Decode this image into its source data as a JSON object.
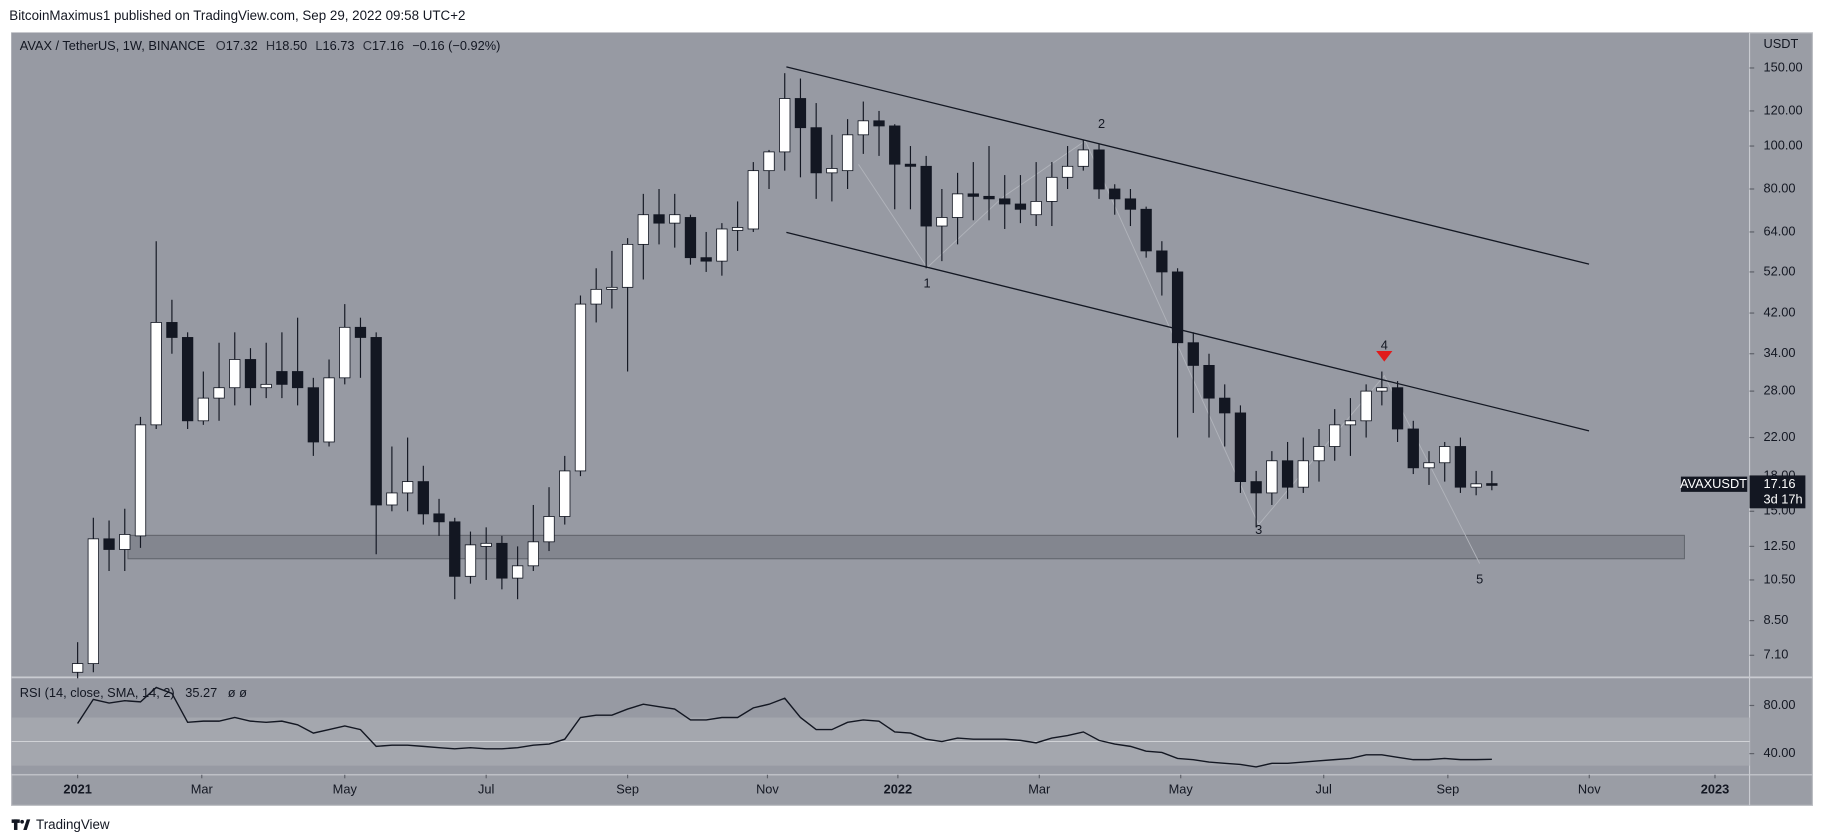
{
  "header": {
    "published": "BitcoinMaximus1 published on TradingView.com, Sep 29, 2022 09:58 UTC+2"
  },
  "footer": {
    "brand": "TradingView"
  },
  "annotations": {
    "waves": [
      "1",
      "2",
      "3",
      "4",
      "5"
    ]
  },
  "chart_data": [
    {
      "type": "candlestick",
      "title": "AVAX / TetherUS, 1W, BINANCE",
      "legend_keys": [
        "O",
        "H",
        "L",
        "C"
      ],
      "legend_labels": [
        "17.32",
        "18.50",
        "16.73",
        "17.16"
      ],
      "change": "−0.16 (−0.92%)",
      "symbol_tag": "AVAXUSDT",
      "countdown": "3d 17h",
      "y_axis_label": "USDT",
      "log_scale": true,
      "grid": false,
      "up_color": "#ffffff",
      "down_color": "#131722",
      "x": [
        0,
        1,
        2,
        3,
        4,
        5,
        6,
        7,
        8,
        9,
        10,
        11,
        12,
        13,
        14,
        15,
        16,
        17,
        18,
        19,
        20,
        21,
        22,
        23,
        24,
        25,
        26,
        27,
        28,
        29,
        30,
        31,
        32,
        33,
        34,
        35,
        36,
        37,
        38,
        39,
        40,
        41,
        42,
        43,
        44,
        45,
        46,
        47,
        48,
        49,
        50,
        51,
        52,
        53,
        54,
        55,
        56,
        57,
        58,
        59,
        60,
        61,
        62,
        63,
        64,
        65,
        66,
        67,
        68,
        69,
        70,
        71,
        72,
        73,
        74,
        75,
        76,
        77,
        78,
        79,
        80,
        81,
        82,
        83,
        84,
        85,
        86,
        87,
        88,
        89,
        90
      ],
      "open": [
        6.5,
        6.8,
        13.0,
        12.3,
        13.2,
        23.5,
        40,
        37,
        24,
        27,
        28.5,
        33,
        28.5,
        31,
        31,
        28.5,
        21.5,
        30,
        39,
        37,
        15.5,
        16.5,
        17.5,
        14.8,
        14.2,
        10.7,
        12.5,
        12.7,
        10.6,
        11.3,
        12.8,
        14.6,
        18.5,
        44,
        47.5,
        48,
        60,
        70,
        67,
        69,
        56,
        55,
        64.5,
        65,
        88,
        97,
        128,
        110,
        87,
        88,
        106,
        114,
        111,
        91,
        90,
        66,
        69,
        78,
        77,
        76,
        74,
        70,
        75,
        85,
        90,
        98,
        80,
        76,
        72,
        58,
        52,
        36,
        32,
        27,
        25,
        17.5,
        16.5,
        19.5,
        17,
        19.5,
        21,
        23.5,
        24,
        28,
        28.5,
        23,
        18.8,
        19.3,
        21,
        17,
        17.32
      ],
      "high": [
        7.6,
        14.5,
        14.3,
        15.2,
        24.5,
        61,
        45,
        38,
        31,
        36,
        38,
        35,
        36,
        38,
        41,
        30,
        33,
        44,
        41,
        38,
        21,
        22,
        19,
        16,
        14.5,
        13.5,
        13.8,
        13.2,
        12.5,
        15.5,
        17,
        20,
        46,
        53,
        58,
        62,
        78,
        80,
        78,
        70,
        64,
        67,
        75,
        92,
        98,
        146,
        142,
        125,
        106,
        115,
        126,
        120,
        112,
        100,
        95,
        80,
        87,
        92,
        100,
        86,
        86,
        92,
        92,
        100,
        103,
        101,
        82,
        80,
        73,
        61,
        53,
        38,
        34,
        29,
        26,
        18.5,
        20.5,
        21.5,
        22,
        23,
        25.5,
        27,
        29,
        31,
        29.5,
        24,
        20.5,
        21.5,
        22,
        18.5,
        18.5
      ],
      "low": [
        6.3,
        6.5,
        11.0,
        11.0,
        12.4,
        23,
        34,
        23,
        23.5,
        24,
        26,
        26,
        27,
        27,
        26,
        20,
        21,
        29,
        30,
        12,
        15,
        15,
        14,
        13.2,
        9.5,
        10.3,
        10.5,
        10,
        9.5,
        11,
        12.2,
        14,
        18,
        40,
        43,
        31,
        50,
        60,
        59,
        54,
        52,
        51,
        58,
        64,
        80,
        88,
        85,
        76,
        75,
        80,
        96,
        95,
        72,
        72,
        53,
        55,
        60,
        68,
        68,
        65,
        67,
        66,
        66,
        80,
        88,
        76,
        70,
        66,
        56,
        46,
        22,
        25,
        22,
        21,
        16.5,
        13.8,
        15.5,
        16,
        16.5,
        17.5,
        19.5,
        20,
        22,
        26,
        21.5,
        18.2,
        17.2,
        17.5,
        16.5,
        16.3,
        16.73
      ],
      "close": [
        6.8,
        13.0,
        12.3,
        13.3,
        23.5,
        40,
        37,
        24,
        27,
        28.5,
        33,
        28.5,
        29,
        29,
        28.5,
        21.5,
        30,
        39,
        37,
        15.5,
        16.5,
        17.5,
        14.8,
        14.2,
        10.7,
        12.6,
        12.7,
        10.6,
        11.3,
        12.8,
        14.6,
        18.5,
        44,
        47.5,
        48,
        60,
        70,
        67,
        70,
        56,
        55,
        65,
        65.5,
        88,
        97,
        128,
        110,
        87,
        89,
        106,
        114,
        111,
        91,
        90,
        66,
        69,
        78,
        77,
        76,
        74,
        72,
        75,
        85,
        90,
        98,
        80,
        76,
        72,
        58,
        52,
        36,
        32,
        27,
        25,
        17.5,
        16.5,
        19.5,
        17,
        19.5,
        21,
        23.5,
        24,
        28,
        28.5,
        23,
        18.8,
        19.3,
        21,
        17,
        17.3,
        17.16
      ],
      "xlim": [
        -4.2,
        106.4
      ],
      "xticks": [
        {
          "value": 0,
          "label": "2021"
        },
        {
          "value": 7.9,
          "label": "Mar"
        },
        {
          "value": 17,
          "label": "May"
        },
        {
          "value": 26,
          "label": "Jul"
        },
        {
          "value": 35,
          "label": "Sep"
        },
        {
          "value": 43.9,
          "label": "Nov"
        },
        {
          "value": 52.2,
          "label": "2022"
        },
        {
          "value": 61.2,
          "label": "Mar"
        },
        {
          "value": 70.2,
          "label": "May"
        },
        {
          "value": 79.3,
          "label": "Jul"
        },
        {
          "value": 87.2,
          "label": "Sep"
        },
        {
          "value": 96.2,
          "label": "Nov"
        },
        {
          "value": 104.2,
          "label": "2023"
        }
      ],
      "ylim": [
        6.37,
        180
      ],
      "yticks": [
        {
          "value": 150,
          "label": "150.00"
        },
        {
          "value": 120,
          "label": "120.00"
        },
        {
          "value": 100,
          "label": "100.00"
        },
        {
          "value": 80,
          "label": "80.00"
        },
        {
          "value": 64,
          "label": "64.00"
        },
        {
          "value": 52,
          "label": "52.00"
        },
        {
          "value": 42,
          "label": "42.00"
        },
        {
          "value": 34,
          "label": "34.00"
        },
        {
          "value": 28,
          "label": "28.00"
        },
        {
          "value": 22,
          "label": "22.00"
        },
        {
          "value": 18,
          "label": "18.00"
        },
        {
          "value": 15,
          "label": "15.00"
        },
        {
          "value": 12.5,
          "label": "12.50"
        },
        {
          "value": 10.5,
          "label": "10.50"
        },
        {
          "value": 8.5,
          "label": "8.50"
        },
        {
          "value": 7.1,
          "label": "7.10"
        }
      ]
    },
    {
      "type": "line",
      "title": "RSI (14, close, SMA, 14, 2)",
      "extra": "ø ø",
      "color": "#131722",
      "values": [
        65,
        85,
        82,
        84,
        83,
        95,
        90,
        66,
        67,
        67,
        70,
        67,
        66,
        67,
        64,
        57,
        60,
        63,
        60,
        46,
        47,
        47,
        46,
        45,
        44,
        45,
        44,
        44,
        45,
        47,
        48,
        52,
        70,
        72,
        72,
        77,
        81,
        79,
        77,
        68,
        68,
        70,
        70,
        78,
        81,
        86,
        70,
        60,
        60,
        66,
        68,
        67,
        58,
        57,
        52,
        50,
        53,
        52,
        52,
        52,
        51,
        49,
        53,
        55,
        58,
        51,
        48,
        46,
        42,
        41,
        36,
        35,
        33,
        32,
        31,
        29,
        32,
        32,
        33,
        34,
        35,
        36,
        39,
        39,
        37,
        35,
        35,
        36,
        35,
        35,
        35.27
      ],
      "value_labels": {
        "90": "35.27"
      },
      "bands": [
        30,
        70
      ],
      "midline": 50,
      "ylim": [
        23.4,
        102.4
      ],
      "yticks": [
        {
          "value": 80,
          "label": "80.00"
        },
        {
          "value": 40,
          "label": "40.00"
        }
      ]
    }
  ]
}
